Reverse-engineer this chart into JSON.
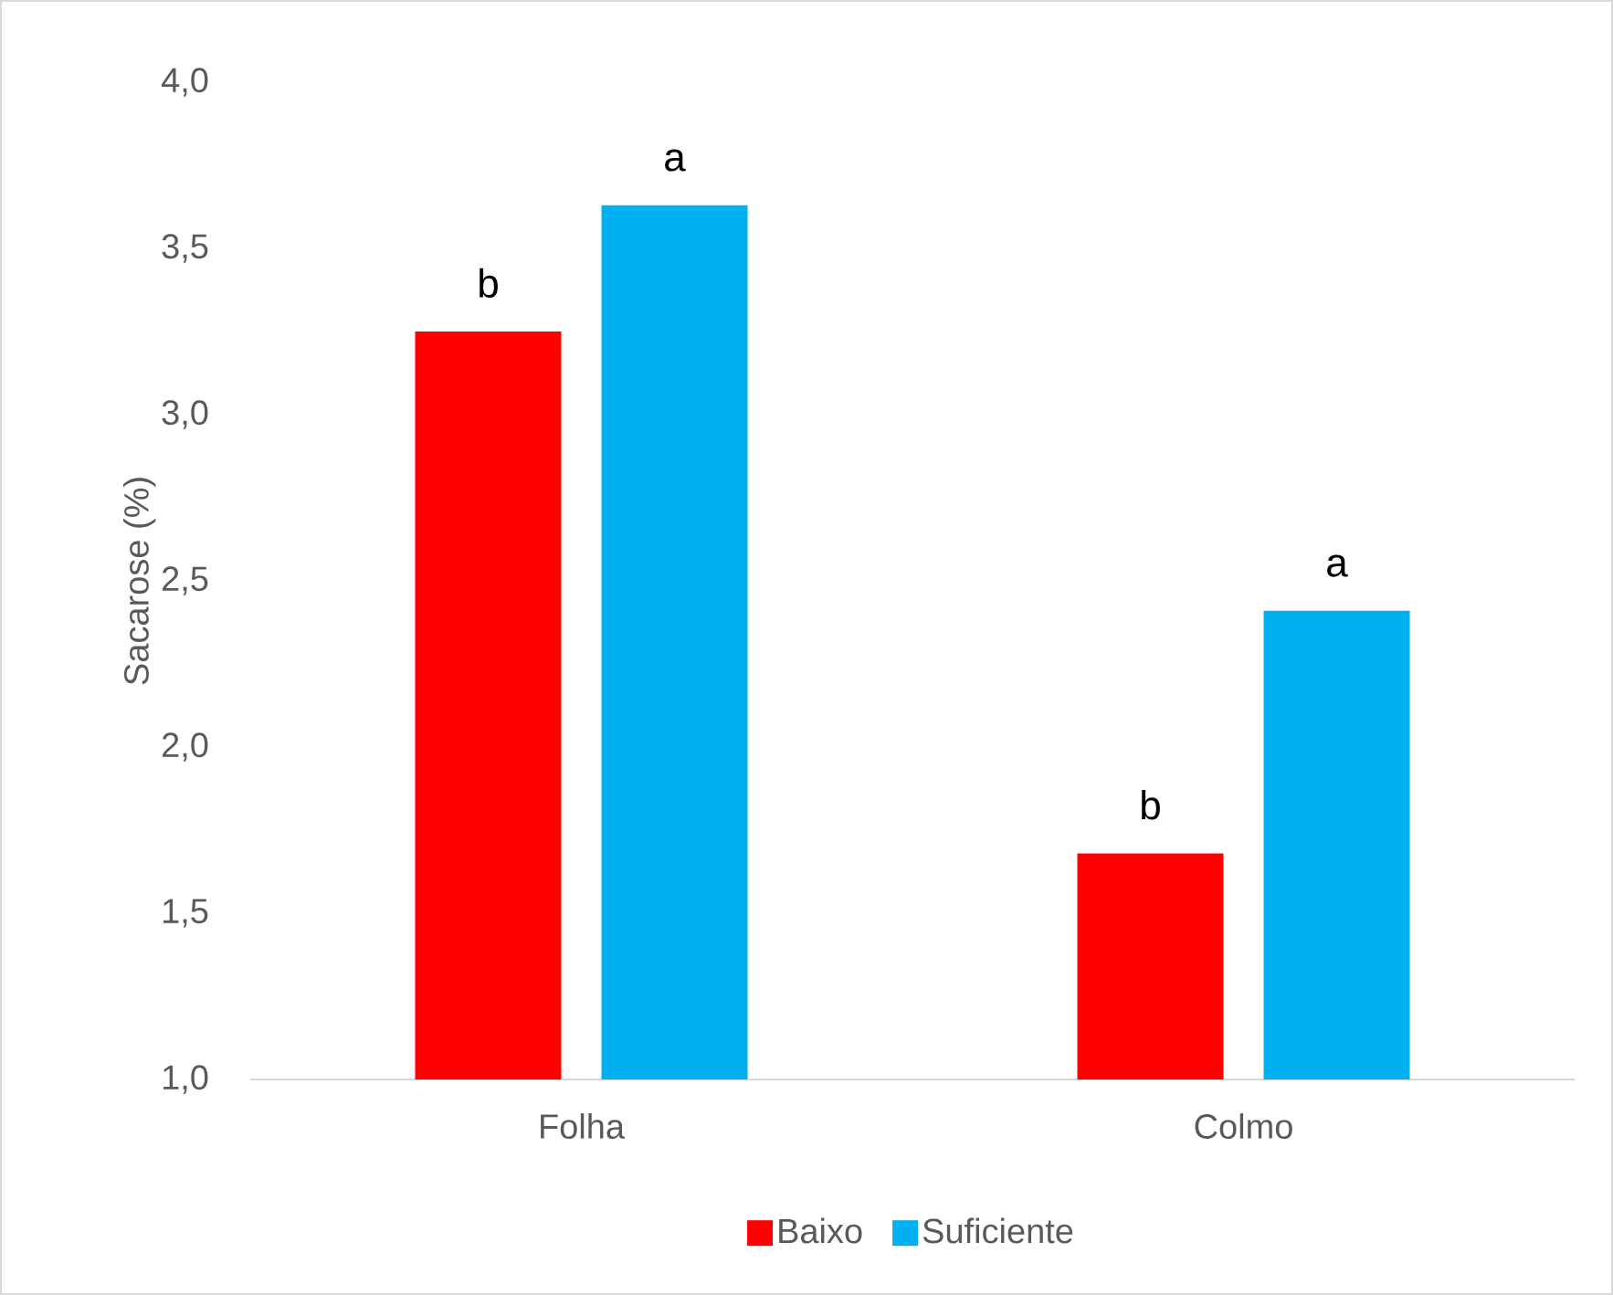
{
  "chart_data": {
    "type": "bar",
    "ylabel": "Sacarose (%)",
    "categories": [
      "Folha",
      "Colmo"
    ],
    "series": [
      {
        "name": "Baixo",
        "color": "#ff0000",
        "values": [
          3.25,
          1.68
        ],
        "value_labels": [
          "b",
          "b"
        ]
      },
      {
        "name": "Suficiente",
        "color": "#00b0f0",
        "values": [
          3.63,
          2.41
        ],
        "value_labels": [
          "a",
          "a"
        ]
      }
    ],
    "ylim": [
      1,
      4
    ],
    "yticks": [
      {
        "value": 1,
        "label": "1,0"
      },
      {
        "value": 1.5,
        "label": "1,5"
      },
      {
        "value": 2,
        "label": "2,0"
      },
      {
        "value": 2.5,
        "label": "2,5"
      },
      {
        "value": 3,
        "label": "3,0"
      },
      {
        "value": 3.5,
        "label": "3,5"
      },
      {
        "value": 4,
        "label": "4,0"
      }
    ],
    "legend": "bottom"
  }
}
